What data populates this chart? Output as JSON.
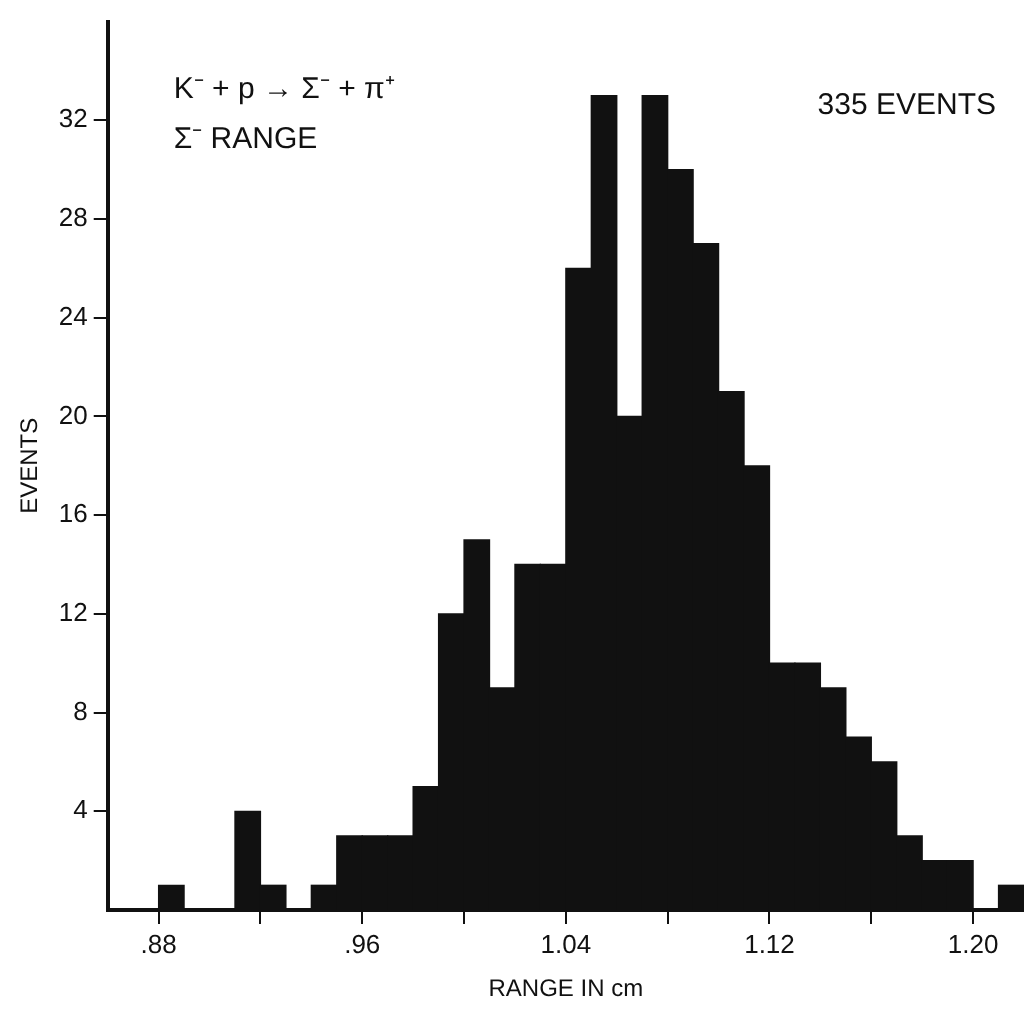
{
  "chart_data": {
    "type": "histogram",
    "xlabel": "RANGE IN cm",
    "ylabel": "EVENTS",
    "annotations": [
      "K⁻ + p → Σ⁻ + π⁺",
      "Σ⁻ RANGE",
      "335 EVENTS"
    ],
    "bins": [
      0.88,
      0.89,
      0.9,
      0.91,
      0.92,
      0.93,
      0.94,
      0.95,
      0.96,
      0.97,
      0.98,
      0.99,
      1.0,
      1.01,
      1.02,
      1.03,
      1.04,
      1.05,
      1.06,
      1.07,
      1.08,
      1.09,
      1.1,
      1.11,
      1.12,
      1.13,
      1.14,
      1.15,
      1.16,
      1.17,
      1.18,
      1.19,
      1.2,
      1.21,
      1.22
    ],
    "values": [
      1,
      0,
      0,
      4,
      1,
      0,
      1,
      3,
      3,
      3,
      5,
      12,
      15,
      9,
      14,
      14,
      26,
      33,
      20,
      33,
      30,
      27,
      21,
      18,
      10,
      10,
      9,
      7,
      6,
      3,
      2,
      2,
      0,
      1
    ],
    "color": "#111111",
    "xlim": [
      0.86,
      1.22
    ],
    "xticks": [
      {
        "value": 0.88,
        "label": ".88"
      },
      {
        "value": 0.92,
        "label": null
      },
      {
        "value": 0.96,
        "label": ".96"
      },
      {
        "value": 1.0,
        "label": null
      },
      {
        "value": 1.04,
        "label": "1.04"
      },
      {
        "value": 1.08,
        "label": null
      },
      {
        "value": 1.12,
        "label": "1.12"
      },
      {
        "value": 1.16,
        "label": null
      },
      {
        "value": 1.2,
        "label": "1.20"
      }
    ],
    "ylim": [
      0,
      36
    ],
    "yticks": [
      4,
      8,
      12,
      16,
      20,
      24,
      28,
      32
    ],
    "grid": false,
    "legend": false
  }
}
